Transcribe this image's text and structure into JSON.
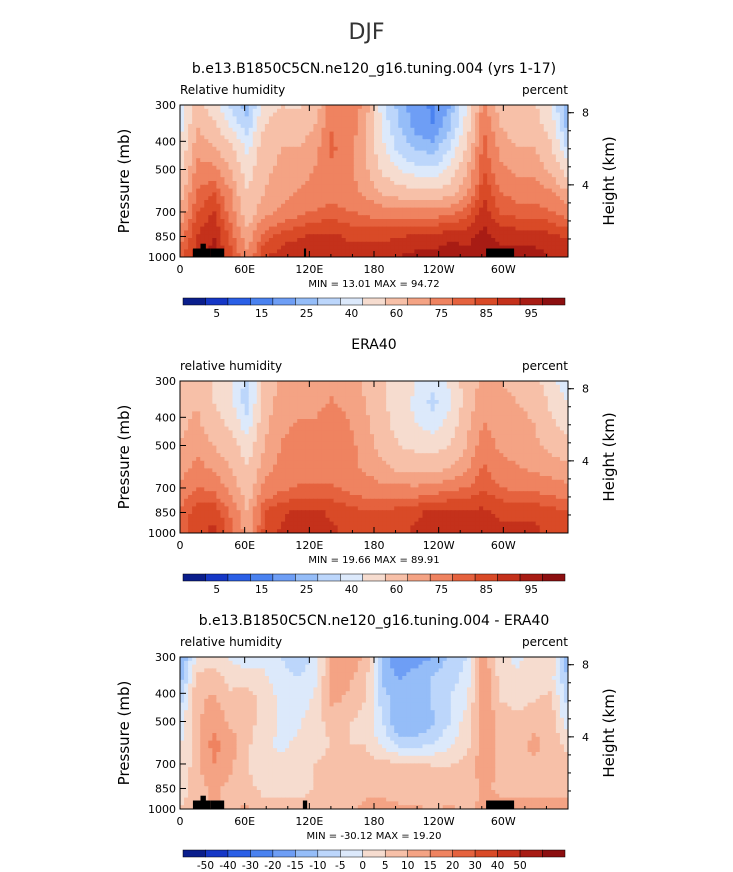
{
  "page_title": "DJF",
  "chart_data": [
    {
      "type": "heatmap",
      "title": "b.e13.B1850C5CN.ne120_g16.tuning.004 (yrs 1-17)",
      "left_string": "Relative humidity",
      "right_string": "percent",
      "ylabel": "Pressure (mb)",
      "ylabel_right": "Height (km)",
      "x_ticks": [
        "0",
        "60E",
        "120E",
        "180",
        "120W",
        "60W"
      ],
      "x_tick_values": [
        0,
        60,
        120,
        180,
        240,
        300
      ],
      "xlim": [
        0,
        360
      ],
      "y_ticks": [
        "300",
        "400",
        "500",
        "700",
        "850",
        "1000"
      ],
      "y_tick_values": [
        300,
        400,
        500,
        700,
        850,
        1000
      ],
      "ylim": [
        1000,
        300
      ],
      "height_ticks": [
        "8",
        "4"
      ],
      "height_tick_values": [
        8,
        4
      ],
      "min_max_label": "MIN = 13.01   MAX = 94.72",
      "min": 13.01,
      "max": 94.72,
      "colorbar_labels": [
        "5",
        "15",
        "25",
        "40",
        "60",
        "75",
        "85",
        "95"
      ],
      "colorbar_colors": [
        "#0a1e8c",
        "#1537c6",
        "#2a5fe6",
        "#4a82f0",
        "#6e9ef5",
        "#95bdf8",
        "#bcd6fb",
        "#dce9fb",
        "#f6dccf",
        "#f7c0a8",
        "#f4a384",
        "#ef8360",
        "#e5623e",
        "#d94a27",
        "#c4311b",
        "#a81c14",
        "#8c0f10"
      ],
      "field": [
        [
          34,
          55,
          45,
          30,
          20,
          45,
          50,
          48,
          55,
          72,
          74,
          65,
          35,
          22,
          17,
          14,
          20,
          40,
          70,
          55,
          50,
          52,
          40,
          18
        ],
        [
          36,
          60,
          52,
          40,
          28,
          50,
          55,
          55,
          60,
          75,
          72,
          62,
          38,
          25,
          18,
          15,
          24,
          45,
          75,
          60,
          55,
          55,
          45,
          22
        ],
        [
          40,
          65,
          62,
          52,
          38,
          56,
          60,
          60,
          65,
          76,
          72,
          60,
          42,
          30,
          24,
          22,
          32,
          52,
          78,
          65,
          60,
          60,
          52,
          30
        ],
        [
          48,
          70,
          70,
          60,
          45,
          58,
          62,
          64,
          68,
          74,
          70,
          62,
          48,
          40,
          35,
          34,
          42,
          60,
          80,
          70,
          66,
          66,
          58,
          45
        ],
        [
          55,
          75,
          80,
          68,
          50,
          60,
          64,
          68,
          70,
          72,
          70,
          66,
          58,
          55,
          52,
          52,
          56,
          66,
          84,
          75,
          72,
          72,
          68,
          60
        ],
        [
          62,
          80,
          86,
          72,
          55,
          66,
          70,
          74,
          76,
          78,
          76,
          74,
          72,
          72,
          72,
          72,
          74,
          78,
          88,
          80,
          78,
          78,
          76,
          72
        ],
        [
          72,
          85,
          90,
          78,
          62,
          78,
          82,
          84,
          86,
          86,
          84,
          84,
          84,
          84,
          86,
          86,
          88,
          88,
          92,
          88,
          88,
          88,
          86,
          84
        ],
        [
          78,
          88,
          92,
          82,
          70,
          84,
          88,
          90,
          90,
          90,
          88,
          88,
          88,
          90,
          92,
          92,
          94,
          92,
          94,
          92,
          92,
          92,
          90,
          88
        ]
      ],
      "topography": [
        {
          "lon_start": 12,
          "lon_end": 28,
          "p_top": 935
        },
        {
          "lon_start": 19,
          "lon_end": 24,
          "p_top": 900
        },
        {
          "lon_start": 28,
          "lon_end": 41,
          "p_top": 935
        },
        {
          "lon_start": 115,
          "lon_end": 117,
          "p_top": 935
        },
        {
          "lon_start": 284,
          "lon_end": 310,
          "p_top": 935
        }
      ]
    },
    {
      "type": "heatmap",
      "title": "ERA40",
      "left_string": "relative humidity",
      "right_string": "percent",
      "ylabel": "Pressure (mb)",
      "ylabel_right": "Height (km)",
      "x_ticks": [
        "0",
        "60E",
        "120E",
        "180",
        "120W",
        "60W"
      ],
      "x_tick_values": [
        0,
        60,
        120,
        180,
        240,
        300
      ],
      "xlim": [
        0,
        360
      ],
      "y_ticks": [
        "300",
        "400",
        "500",
        "700",
        "850",
        "1000"
      ],
      "y_tick_values": [
        300,
        400,
        500,
        700,
        850,
        1000
      ],
      "ylim": [
        1000,
        300
      ],
      "height_ticks": [
        "8",
        "4"
      ],
      "height_tick_values": [
        8,
        4
      ],
      "min_max_label": "MIN = 19.66   MAX = 89.91",
      "min": 19.66,
      "max": 89.91,
      "colorbar_labels": [
        "5",
        "15",
        "25",
        "40",
        "60",
        "75",
        "85",
        "95"
      ],
      "colorbar_colors": [
        "#0a1e8c",
        "#1537c6",
        "#2a5fe6",
        "#4a82f0",
        "#6e9ef5",
        "#95bdf8",
        "#bcd6fb",
        "#dce9fb",
        "#f6dccf",
        "#f7c0a8",
        "#f4a384",
        "#ef8360",
        "#e5623e",
        "#d94a27",
        "#c4311b",
        "#a81c14",
        "#8c0f10"
      ],
      "field": [
        [
          55,
          58,
          48,
          40,
          30,
          52,
          62,
          64,
          64,
          66,
          64,
          58,
          52,
          45,
          40,
          36,
          42,
          55,
          62,
          60,
          58,
          55,
          42,
          35
        ],
        [
          56,
          60,
          50,
          42,
          28,
          55,
          64,
          66,
          66,
          68,
          66,
          60,
          52,
          44,
          38,
          30,
          38,
          55,
          65,
          62,
          60,
          58,
          48,
          40
        ],
        [
          58,
          62,
          55,
          48,
          34,
          58,
          66,
          68,
          68,
          70,
          68,
          62,
          54,
          46,
          40,
          36,
          44,
          58,
          68,
          64,
          62,
          60,
          52,
          46
        ],
        [
          60,
          66,
          60,
          55,
          45,
          60,
          68,
          70,
          70,
          72,
          70,
          64,
          56,
          50,
          48,
          46,
          50,
          60,
          72,
          66,
          64,
          62,
          58,
          54
        ],
        [
          64,
          70,
          66,
          60,
          50,
          64,
          70,
          72,
          72,
          72,
          70,
          66,
          62,
          58,
          56,
          56,
          60,
          66,
          76,
          70,
          68,
          66,
          64,
          62
        ],
        [
          70,
          76,
          74,
          66,
          55,
          70,
          74,
          76,
          76,
          76,
          74,
          72,
          70,
          70,
          70,
          72,
          74,
          76,
          80,
          76,
          74,
          74,
          72,
          70
        ],
        [
          76,
          82,
          84,
          74,
          60,
          80,
          84,
          86,
          86,
          84,
          82,
          80,
          80,
          82,
          84,
          86,
          86,
          86,
          86,
          84,
          84,
          84,
          82,
          80
        ],
        [
          78,
          84,
          86,
          78,
          64,
          82,
          86,
          88,
          88,
          86,
          84,
          82,
          82,
          84,
          86,
          88,
          88,
          88,
          88,
          86,
          86,
          86,
          84,
          82
        ]
      ],
      "topography": []
    },
    {
      "type": "heatmap",
      "title": "b.e13.B1850C5CN.ne120_g16.tuning.004 - ERA40",
      "left_string": "relative humidity",
      "right_string": "percent",
      "ylabel": "Pressure (mb)",
      "ylabel_right": "Height (km)",
      "x_ticks": [
        "0",
        "60E",
        "120E",
        "180",
        "120W",
        "60W"
      ],
      "x_tick_values": [
        0,
        60,
        120,
        180,
        240,
        300
      ],
      "xlim": [
        0,
        360
      ],
      "y_ticks": [
        "300",
        "400",
        "500",
        "700",
        "850",
        "1000"
      ],
      "y_tick_values": [
        300,
        400,
        500,
        700,
        850,
        1000
      ],
      "ylim": [
        1000,
        300
      ],
      "height_ticks": [
        "8",
        "4"
      ],
      "height_tick_values": [
        8,
        4
      ],
      "min_max_label": "MIN = -30.12   MAX = 19.20",
      "min": -30.12,
      "max": 19.2,
      "colorbar_labels": [
        "-50",
        "-40",
        "-30",
        "-20",
        "-15",
        "-10",
        "-5",
        "0",
        "5",
        "10",
        "15",
        "20",
        "30",
        "40",
        "50"
      ],
      "colorbar_colors": [
        "#0a1e8c",
        "#1537c6",
        "#2a5fe6",
        "#4a82f0",
        "#6e9ef5",
        "#95bdf8",
        "#bcd6fb",
        "#dce9fb",
        "#f6dccf",
        "#f7c0a8",
        "#f4a384",
        "#ef8360",
        "#e5623e",
        "#d94a27",
        "#c4311b",
        "#a81c14",
        "#8c0f10"
      ],
      "field": [
        [
          -22,
          -4,
          -3,
          -6,
          -8,
          -6,
          -10,
          -14,
          -9,
          6,
          8,
          4,
          -18,
          -24,
          -22,
          -20,
          -14,
          -10,
          8,
          -4,
          -6,
          -4,
          -2,
          -18
        ],
        [
          -18,
          2,
          3,
          -2,
          -2,
          -4,
          -8,
          -10,
          -6,
          6,
          6,
          2,
          -16,
          -20,
          -18,
          -14,
          -12,
          -8,
          10,
          -2,
          -4,
          -2,
          -3,
          -16
        ],
        [
          -12,
          4,
          6,
          2,
          3,
          -2,
          -6,
          -8,
          -4,
          6,
          4,
          0,
          -12,
          -18,
          -18,
          -14,
          -10,
          -6,
          10,
          0,
          -2,
          0,
          2,
          -12
        ],
        [
          -8,
          4,
          8,
          4,
          2,
          -2,
          -6,
          -6,
          -2,
          2,
          0,
          -2,
          -10,
          -20,
          -20,
          -16,
          -10,
          -2,
          8,
          4,
          2,
          4,
          2,
          -8
        ],
        [
          -6,
          4,
          12,
          8,
          1,
          -4,
          -6,
          -4,
          -2,
          0,
          0,
          0,
          -6,
          -12,
          -12,
          -10,
          -6,
          -2,
          8,
          4,
          4,
          6,
          4,
          -2
        ],
        [
          -6,
          4,
          10,
          6,
          0,
          -4,
          -4,
          -2,
          0,
          2,
          2,
          2,
          2,
          2,
          2,
          0,
          0,
          2,
          8,
          4,
          4,
          4,
          4,
          2
        ],
        [
          -4,
          3,
          6,
          4,
          2,
          -2,
          -2,
          -2,
          0,
          2,
          2,
          4,
          4,
          2,
          2,
          0,
          2,
          2,
          6,
          4,
          4,
          4,
          4,
          4
        ],
        [
          0,
          4,
          6,
          4,
          6,
          2,
          2,
          2,
          2,
          4,
          4,
          6,
          6,
          6,
          6,
          4,
          6,
          4,
          6,
          6,
          6,
          6,
          6,
          6
        ]
      ],
      "topography": [
        {
          "lon_start": 12,
          "lon_end": 28,
          "p_top": 935
        },
        {
          "lon_start": 19,
          "lon_end": 24,
          "p_top": 900
        },
        {
          "lon_start": 28,
          "lon_end": 41,
          "p_top": 935
        },
        {
          "lon_start": 114,
          "lon_end": 118,
          "p_top": 935
        },
        {
          "lon_start": 284,
          "lon_end": 310,
          "p_top": 935
        }
      ]
    }
  ]
}
